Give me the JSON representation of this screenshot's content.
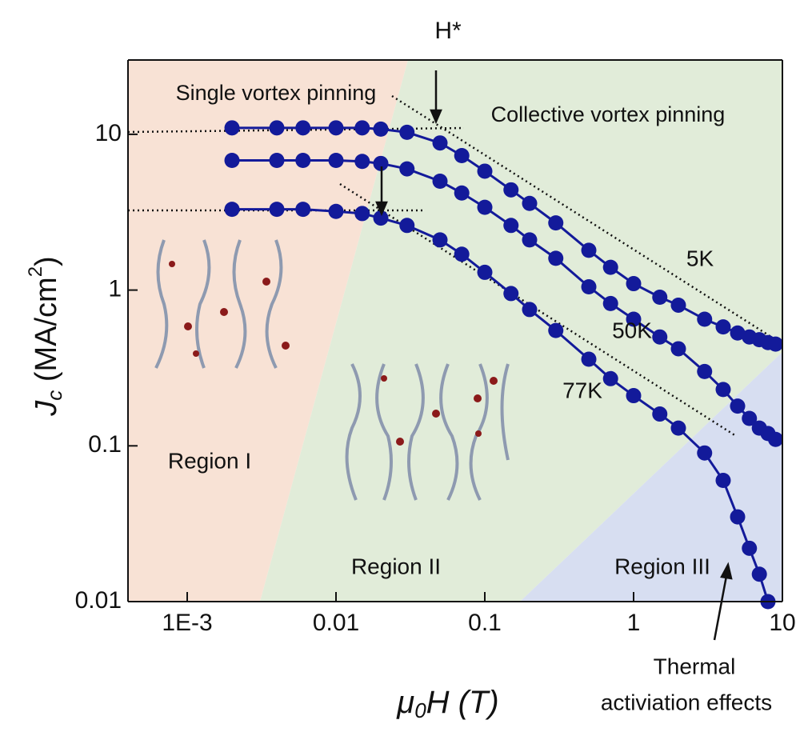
{
  "chart_data": {
    "type": "scatter",
    "top_label": "H*",
    "x_label": {
      "main": "μ",
      "sub": "0",
      "rest": "H (T)"
    },
    "y_label": {
      "main": "J",
      "sub": "c",
      "rest": " (MA/cm",
      "sup": "2",
      "end": ")"
    },
    "log_x": true,
    "log_y": true,
    "xlim": [
      0.0004,
      10
    ],
    "ylim": [
      0.01,
      30
    ],
    "xticks": [
      {
        "value": 0.001,
        "label": "1E-3"
      },
      0.01,
      0.1,
      1,
      10
    ],
    "yticks": [
      0.01,
      0.1,
      1,
      10
    ],
    "x": [
      0.002,
      0.004,
      0.006,
      0.01,
      0.015,
      0.02,
      0.03,
      0.05,
      0.07,
      0.1,
      0.15,
      0.2,
      0.3,
      0.5,
      0.7,
      1,
      1.5,
      2,
      3,
      4,
      5,
      6,
      7,
      8,
      9
    ],
    "series": [
      {
        "name": "5K",
        "color": "#131a9a",
        "values": [
          11,
          11,
          11,
          11,
          11,
          10.8,
          10.3,
          8.8,
          7.3,
          5.8,
          4.4,
          3.6,
          2.7,
          1.8,
          1.4,
          1.1,
          0.9,
          0.8,
          0.65,
          0.58,
          0.53,
          0.5,
          0.48,
          0.46,
          0.45
        ]
      },
      {
        "name": "50K",
        "color": "#131a9a",
        "values": [
          6.8,
          6.8,
          6.8,
          6.8,
          6.7,
          6.5,
          6.0,
          5.0,
          4.2,
          3.4,
          2.6,
          2.1,
          1.6,
          1.05,
          0.82,
          0.65,
          0.5,
          0.42,
          0.3,
          0.23,
          0.18,
          0.15,
          0.13,
          0.12,
          0.11
        ]
      },
      {
        "name": "77K",
        "color": "#131a9a",
        "values": [
          3.3,
          3.3,
          3.3,
          3.2,
          3.1,
          2.9,
          2.6,
          2.1,
          1.7,
          1.3,
          0.95,
          0.75,
          0.55,
          0.36,
          0.27,
          0.21,
          0.16,
          0.13,
          0.09,
          0.06,
          0.035,
          0.022,
          0.015,
          0.01,
          null
        ]
      }
    ],
    "annotations": [
      "Single vortex pinning",
      "Collective vortex pinning",
      "Region I",
      "Region II",
      "Region III",
      "Thermal",
      "activiation effects"
    ]
  }
}
